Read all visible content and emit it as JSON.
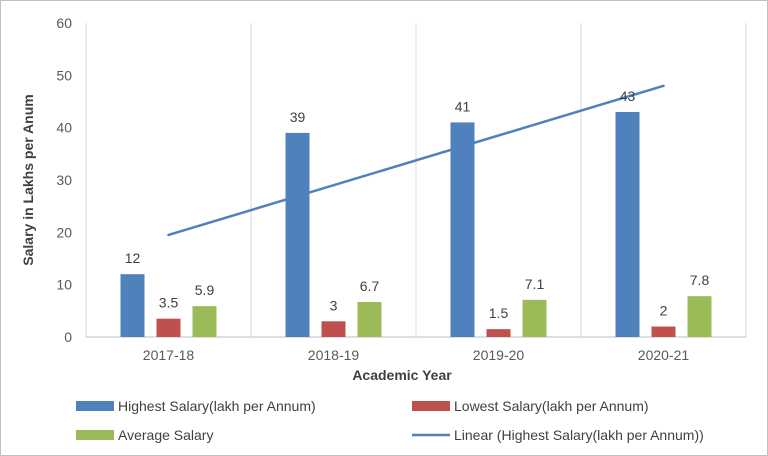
{
  "chart_data": {
    "type": "bar",
    "xlabel": "Academic Year",
    "ylabel": "Salary in Lakhs per Anum",
    "ylim": [
      0,
      60
    ],
    "yticks": [
      0,
      10,
      20,
      30,
      40,
      50,
      60
    ],
    "categories": [
      "2017-18",
      "2018-19",
      "2019-20",
      "2020-21"
    ],
    "series": [
      {
        "name": "Highest Salary(lakh per Annum)",
        "color": "#4f81bd",
        "values": [
          12,
          39,
          41,
          43
        ],
        "labels": [
          "12",
          "39",
          "41",
          "43"
        ]
      },
      {
        "name": "Lowest Salary(lakh per Annum)",
        "color": "#c0504d",
        "values": [
          3.5,
          3,
          1.5,
          2
        ],
        "labels": [
          "3.5",
          "3",
          "1.5",
          "2"
        ]
      },
      {
        "name": "Average Salary",
        "color": "#9bbb59",
        "values": [
          5.9,
          6.7,
          7.1,
          7.8
        ],
        "labels": [
          "5.9",
          "6.7",
          "7.1",
          "7.8"
        ]
      }
    ],
    "trendline": {
      "name": "Linear (Highest Salary(lakh per Annum))",
      "color": "#4f81bd",
      "of_series": "Highest Salary(lakh per Annum)",
      "fit": "linear",
      "start": 19.5,
      "end": 48
    },
    "grid": {
      "vertical": true,
      "horizontal": false
    },
    "legend_position": "bottom"
  }
}
